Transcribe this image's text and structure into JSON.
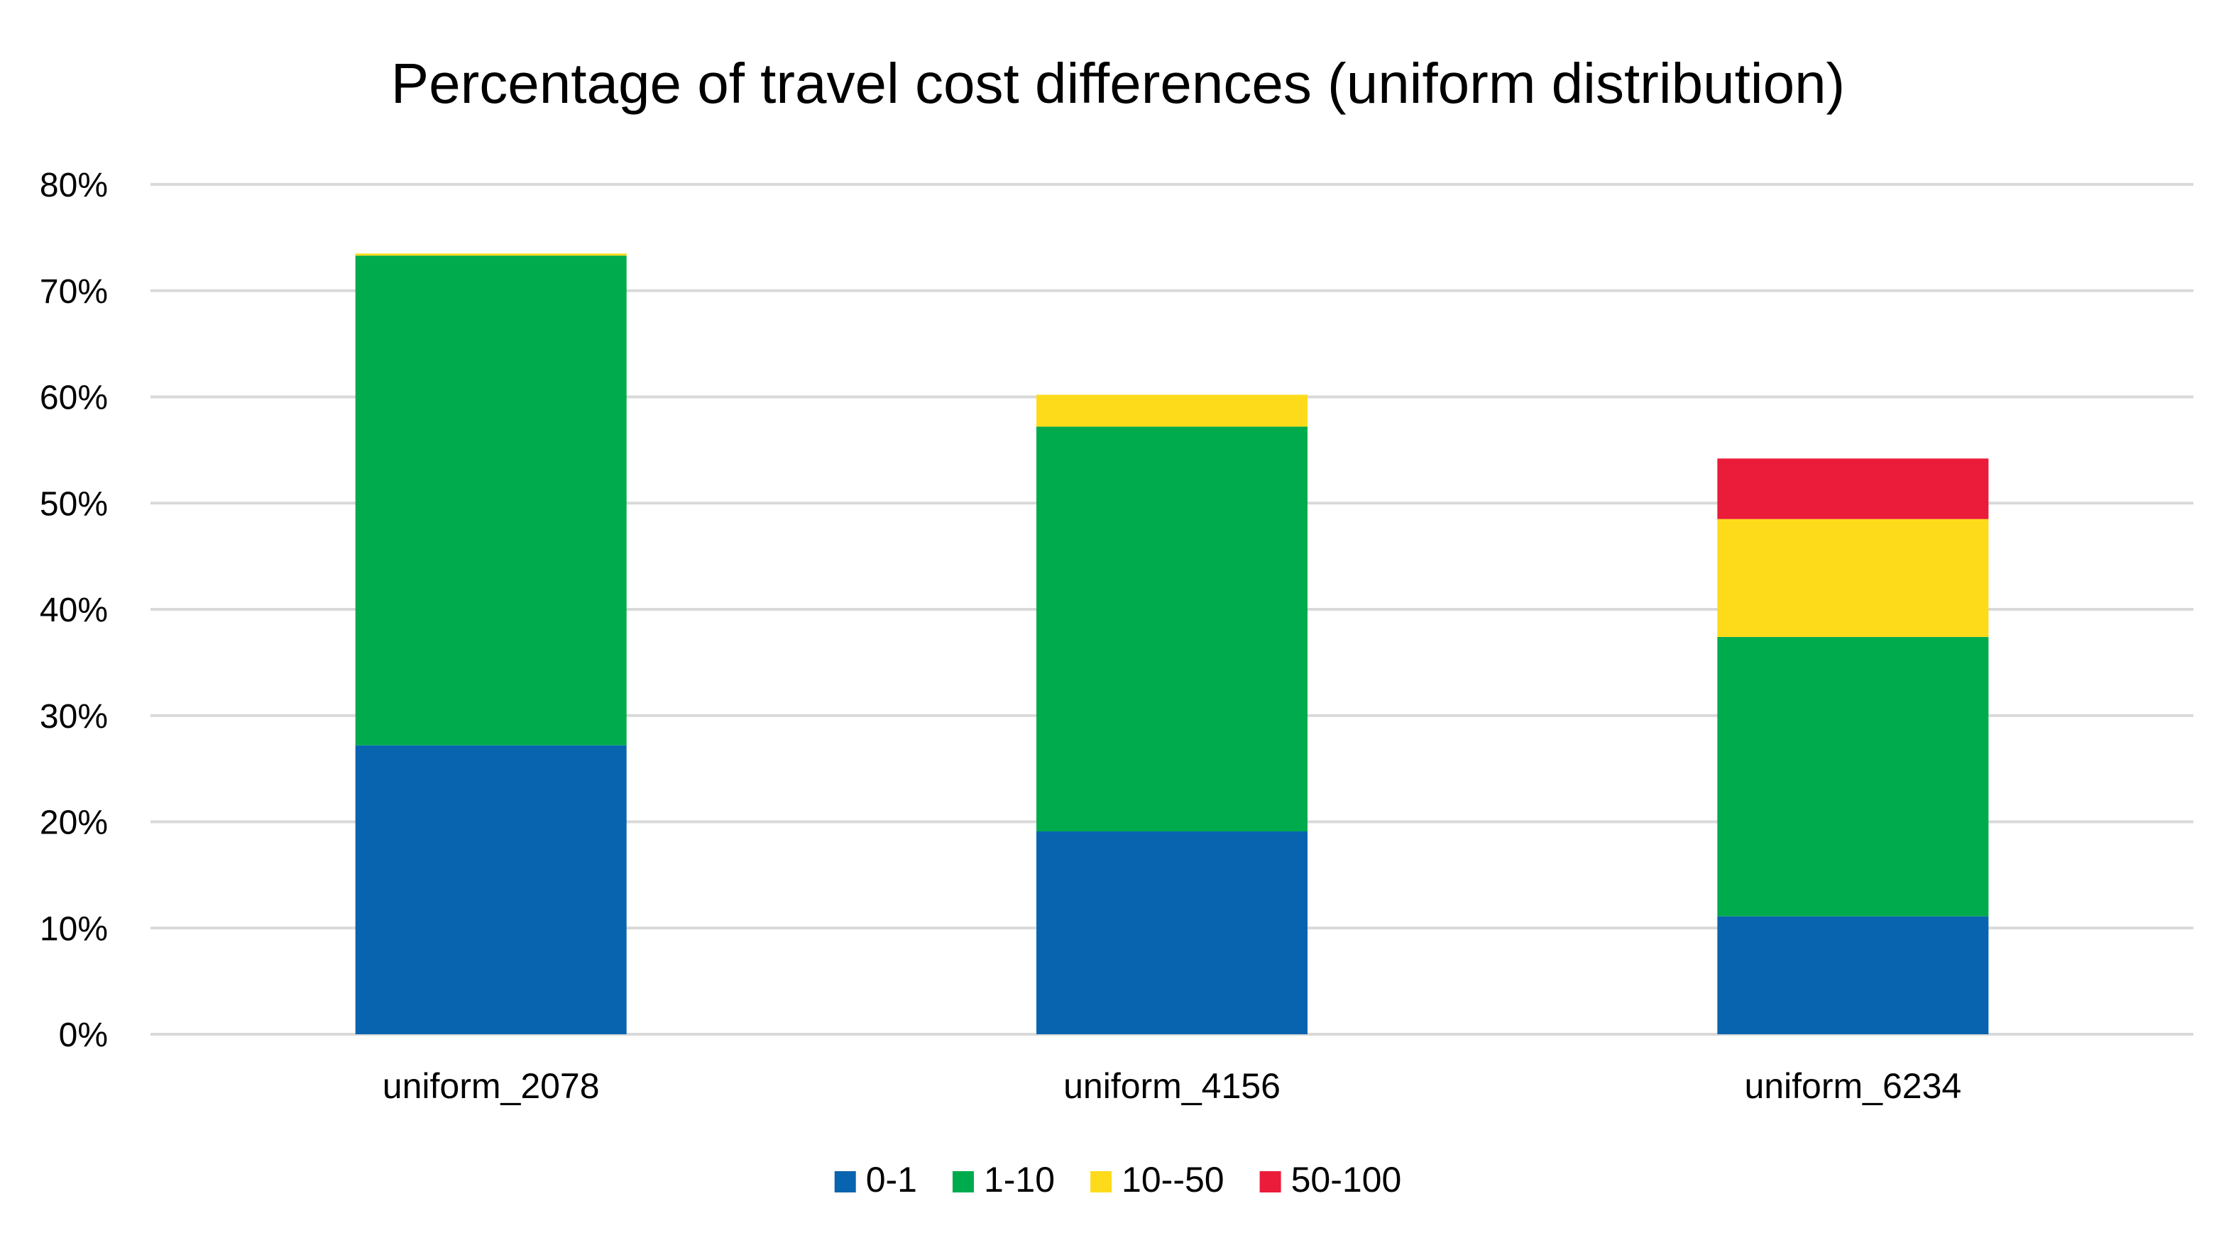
{
  "chart_data": {
    "type": "bar",
    "stacked": true,
    "title": "Percentage of travel cost differences (uniform distribution)",
    "xlabel": "",
    "ylabel": "",
    "categories": [
      "uniform_2078",
      "uniform_4156",
      "uniform_6234"
    ],
    "series": [
      {
        "name": "0-1",
        "color": "#0964b0",
        "values": [
          27.2,
          19.1,
          11.1
        ]
      },
      {
        "name": "1-10",
        "color": "#00ab4e",
        "values": [
          46.1,
          38.1,
          26.3
        ]
      },
      {
        "name": "10--50",
        "color": "#fddb1a",
        "values": [
          0.2,
          3.0,
          11.1
        ]
      },
      {
        "name": "50-100",
        "color": "#eb1c3a",
        "values": [
          0.0,
          0.0,
          5.7
        ]
      }
    ],
    "ylim": [
      0,
      80
    ],
    "yticks": [
      0,
      10,
      20,
      30,
      40,
      50,
      60,
      70,
      80
    ],
    "ytick_labels": [
      "0%",
      "10%",
      "20%",
      "30%",
      "40%",
      "50%",
      "60%",
      "70%",
      "80%"
    ],
    "grid": true,
    "legend_position": "bottom"
  }
}
